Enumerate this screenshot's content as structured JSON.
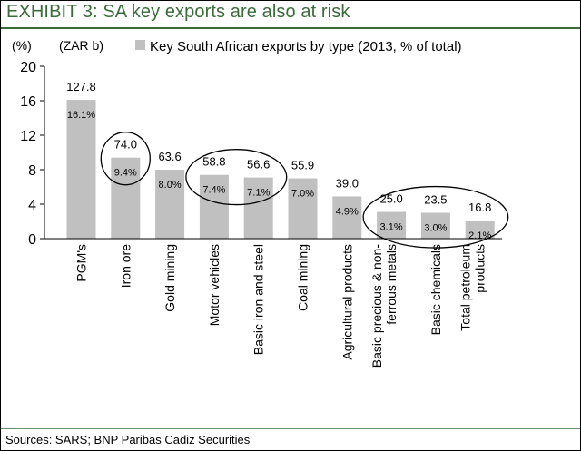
{
  "header": {
    "title": "EXHIBIT 3:  SA key exports are also at risk"
  },
  "footer": {
    "source": "Sources: SARS; BNP Paribas Cadiz Securities"
  },
  "chart_data": {
    "type": "bar",
    "title": "EXHIBIT 3:  SA key exports are also at risk",
    "ylabel": "(%)",
    "unit_note": "(ZAR b)",
    "ylim": [
      0,
      20
    ],
    "yticks": [
      0,
      4,
      8,
      12,
      16,
      20
    ],
    "grid": false,
    "legend": {
      "position": "top",
      "entries": [
        "Key South African exports by type (2013, % of total)"
      ]
    },
    "bar_color": "#c0c0c0",
    "categories": [
      "PGM's",
      "Iron ore",
      "Gold mining",
      "Motor vehicles",
      "Basic iron and steel",
      "Coal mining",
      "Agricultural products",
      "Basic precious & non-ferrous metals",
      "Basic chemicals",
      "Total petroleum products"
    ],
    "category_lines": [
      [
        "PGM's"
      ],
      [
        "Iron ore"
      ],
      [
        "Gold mining"
      ],
      [
        "Motor vehicles"
      ],
      [
        "Basic iron and steel"
      ],
      [
        "Coal mining"
      ],
      [
        "Agricultural products"
      ],
      [
        "Basic precious & non-",
        "ferrous metals"
      ],
      [
        "Basic chemicals"
      ],
      [
        "Total petroleum",
        "products"
      ]
    ],
    "values": [
      16.1,
      9.4,
      8.0,
      7.4,
      7.1,
      7.0,
      4.9,
      3.1,
      3.0,
      2.1
    ],
    "percent_labels": [
      "16.1%",
      "9.4%",
      "8.0%",
      "7.4%",
      "7.1%",
      "7.0%",
      "4.9%",
      "3.1%",
      "3.0%",
      "2.1%"
    ],
    "zar_values": [
      127.8,
      74.0,
      63.6,
      58.8,
      56.6,
      55.9,
      39.0,
      25.0,
      23.5,
      16.8
    ],
    "zar_labels": [
      "127.8",
      "74.0",
      "63.6",
      "58.8",
      "56.6",
      "55.9",
      "39.0",
      "25.0",
      "23.5",
      "16.8"
    ],
    "annotations": [
      {
        "type": "ellipse",
        "categories": [
          "Iron ore"
        ]
      },
      {
        "type": "ellipse",
        "categories": [
          "Motor vehicles",
          "Basic iron and steel"
        ]
      },
      {
        "type": "ellipse",
        "categories": [
          "Basic precious & non-ferrous metals",
          "Basic chemicals",
          "Total petroleum products"
        ]
      }
    ]
  }
}
